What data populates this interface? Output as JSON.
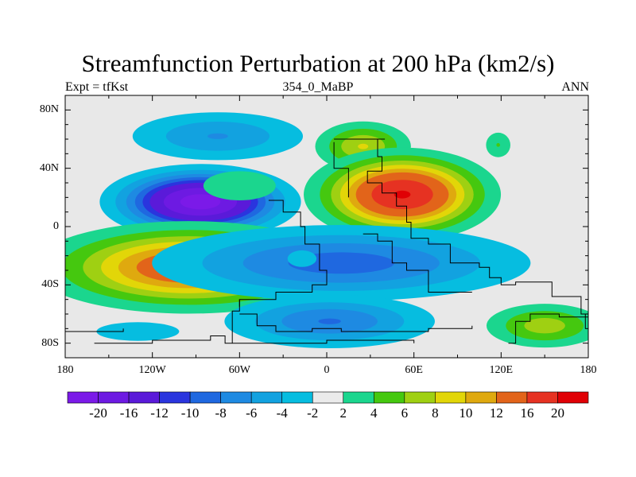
{
  "title": "Streamfunction Perturbation at 200 hPa (km2/s)",
  "subtitle_left": "Expt = tfKst",
  "subtitle_center": "354_0_MaBP",
  "subtitle_right": "ANN",
  "map": {
    "projection": "cylindrical equidistant",
    "lon_range": [
      -180,
      180
    ],
    "lat_range": [
      -90,
      90
    ],
    "background_color": "#e8e8e8",
    "lat_ticks": [
      {
        "lat": 80,
        "label": "80N"
      },
      {
        "lat": 40,
        "label": "40N"
      },
      {
        "lat": 0,
        "label": "0"
      },
      {
        "lat": -40,
        "label": "40S"
      },
      {
        "lat": -80,
        "label": "80S"
      }
    ],
    "lon_ticks": [
      {
        "lon": -180,
        "label": "180"
      },
      {
        "lon": -120,
        "label": "120W"
      },
      {
        "lon": -60,
        "label": "60W"
      },
      {
        "lon": 0,
        "label": "0"
      },
      {
        "lon": 60,
        "label": "60E"
      },
      {
        "lon": 120,
        "label": "120E"
      },
      {
        "lon": 180,
        "label": "180"
      }
    ],
    "fields": [
      {
        "id": "neg-north-pacific",
        "lon": -75,
        "lat": 62,
        "rlon": 50,
        "rlat": 14,
        "peak": -6
      },
      {
        "id": "neg-central-pacific-low",
        "lon": -87,
        "lat": 17,
        "rlon": 40,
        "rlat": 15,
        "peak": -22
      },
      {
        "id": "pos-south-pacific",
        "lon": -95,
        "lat": -28,
        "rlon": 68,
        "rlat": 20,
        "peak": 15
      },
      {
        "id": "pos-south-pacific-core",
        "lon": -80,
        "lat": -17,
        "rlon": 14,
        "rlat": 7,
        "peak": 5
      },
      {
        "id": "pos-north-africa",
        "lon": 25,
        "lat": 55,
        "rlon": 25,
        "rlat": 13,
        "peak": 8
      },
      {
        "id": "pos-asia-high",
        "lon": 52,
        "lat": 22,
        "rlon": 40,
        "rlat": 19,
        "peak": 20
      },
      {
        "id": "pos-far-east",
        "lon": 118,
        "lat": 56,
        "rlon": 9,
        "rlat": 9,
        "peak": 4
      },
      {
        "id": "neg-south-atlantic",
        "lon": 10,
        "lat": -25,
        "rlon": 95,
        "rlat": 19,
        "peak": -9
      },
      {
        "id": "neg-south-atlantic-core",
        "lon": -17,
        "lat": -22,
        "rlon": 14,
        "rlat": 8,
        "peak": -3
      },
      {
        "id": "neg-southern-ocean",
        "lon": 2,
        "lat": -65,
        "rlon": 55,
        "rlat": 14,
        "peak": -8
      },
      {
        "id": "pos-southern-ocean-east",
        "lon": 150,
        "lat": -68,
        "rlon": 32,
        "rlat": 12,
        "peak": 7
      },
      {
        "id": "pos-equatorial-west",
        "lon": -60,
        "lat": 28,
        "rlon": 35,
        "rlat": 14,
        "peak": 3
      },
      {
        "id": "neg-southern-ocean-west",
        "lon": -130,
        "lat": -72,
        "rlon": 40,
        "rlat": 9,
        "peak": -3
      }
    ],
    "coastlines": [
      [
        [
          5,
          60
        ],
        [
          40,
          60
        ],
        [
          35,
          48
        ],
        [
          38,
          38
        ],
        [
          28,
          30
        ],
        [
          38,
          23
        ],
        [
          48,
          14
        ],
        [
          55,
          10
        ],
        [
          55,
          3
        ],
        [
          58,
          -8
        ],
        [
          70,
          -12
        ],
        [
          85,
          -25
        ],
        [
          105,
          -28
        ],
        [
          112,
          -35
        ],
        [
          120,
          -40
        ],
        [
          130,
          -38
        ],
        [
          140,
          -38
        ],
        [
          155,
          -48
        ],
        [
          175,
          -60
        ],
        [
          178,
          -70
        ]
      ],
      [
        [
          -40,
          18
        ],
        [
          -30,
          10
        ],
        [
          -18,
          0
        ],
        [
          -15,
          -12
        ],
        [
          -5,
          -30
        ],
        [
          0,
          -40
        ],
        [
          -10,
          -45
        ],
        [
          -35,
          -50
        ],
        [
          -60,
          -55
        ]
      ],
      [
        [
          5,
          58
        ],
        [
          5,
          40
        ],
        [
          15,
          38
        ],
        [
          15,
          20
        ]
      ],
      [
        [
          25,
          -5
        ],
        [
          35,
          -10
        ],
        [
          45,
          -25
        ],
        [
          55,
          -30
        ],
        [
          70,
          -45
        ],
        [
          100,
          -45
        ]
      ],
      [
        [
          -60,
          -60
        ],
        [
          -48,
          -68
        ],
        [
          -35,
          -72
        ],
        [
          -10,
          -70
        ],
        [
          10,
          -72
        ],
        [
          40,
          -72
        ],
        [
          70,
          -70
        ],
        [
          100,
          -68
        ]
      ],
      [
        [
          -160,
          -80
        ],
        [
          -120,
          -78
        ],
        [
          -80,
          -75
        ],
        [
          -70,
          -80
        ],
        [
          -40,
          -80
        ],
        [
          0,
          -78
        ],
        [
          60,
          -80
        ]
      ],
      [
        [
          125,
          -80
        ],
        [
          130,
          -65
        ],
        [
          140,
          -60
        ],
        [
          160,
          -62
        ],
        [
          180,
          -68
        ]
      ],
      [
        [
          -180,
          -72
        ],
        [
          -155,
          -72
        ],
        [
          -140,
          -70
        ]
      ],
      [
        [
          -65,
          -80
        ],
        [
          -65,
          -58
        ],
        [
          -60,
          -50
        ]
      ]
    ]
  },
  "colorbar": {
    "levels": [
      "-20",
      "-16",
      "-12",
      "-10",
      "-8",
      "-6",
      "-4",
      "-2",
      "2",
      "4",
      "6",
      "8",
      "10",
      "12",
      "16",
      "20"
    ],
    "colors": [
      "#7b1ae8",
      "#6d1ae2",
      "#5a1ad9",
      "#2a35de",
      "#1f68e0",
      "#1e8ae2",
      "#12a2e0",
      "#06bde0",
      "#ebebeb",
      "#1bd68e",
      "#45c80f",
      "#9fd012",
      "#e2d608",
      "#dfa90f",
      "#e2641a",
      "#e63222",
      "#e00005"
    ]
  }
}
